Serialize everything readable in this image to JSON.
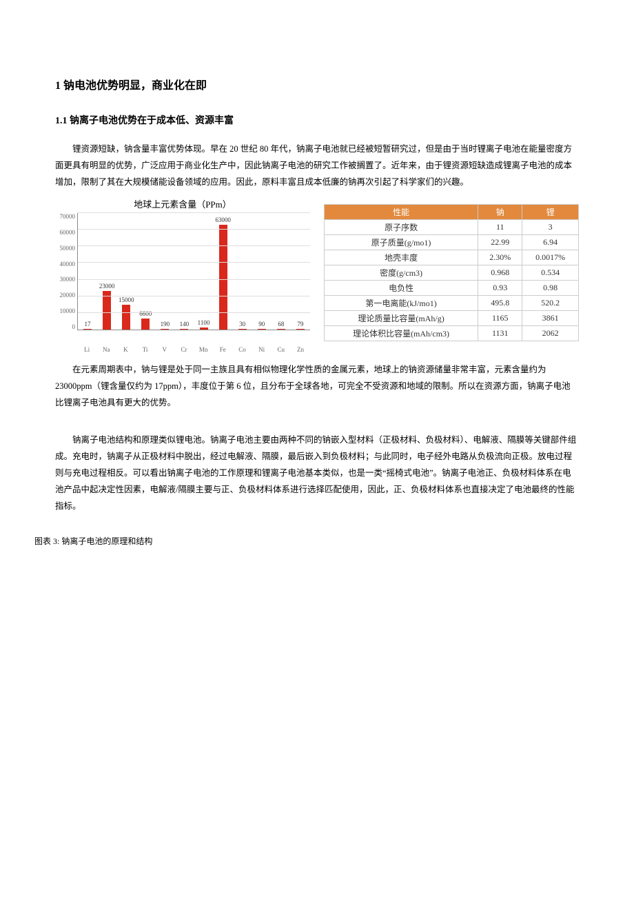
{
  "heading1": "1 钠电池优势明显，商业化在即",
  "heading2": "1.1 钠离子电池优势在于成本低、资源丰富",
  "para1": "锂资源短缺，钠含量丰富优势体现。早在 20 世纪 80 年代，钠离子电池就已经被短暂研究过，但是由于当时锂离子电池在能量密度方面更具有明显的优势，广泛应用于商业化生产中，因此钠离子电池的研究工作被搁置了。近年来，由于锂资源短缺造成锂离子电池的成本增加，限制了其在大规模储能设备领域的应用。因此，原料丰富且成本低廉的钠再次引起了科学家们的兴趣。",
  "para2": "在元素周期表中，钠与锂是处于同一主族且具有相似物理化学性质的金属元素，地球上的钠资源储量非常丰富，元素含量约为 23000ppm（锂含量仅约为 17ppm），丰度位于第 6 位，且分布于全球各地，可完全不受资源和地域的限制。所以在资源方面，钠离子电池比锂离子电池具有更大的优势。",
  "para3": "钠离子电池结构和原理类似锂电池。钠离子电池主要由两种不同的钠嵌入型材料（正极材料、负极材料）、电解液、隔膜等关键部件组成。充电时，钠离子从正极材料中脱出，经过电解液、隔膜，最后嵌入到负极材料；与此同时，电子经外电路从负极流向正极。放电过程则与充电过程相反。可以看出钠离子电池的工作原理和锂离子电池基本类似，也是一类“摇椅式电池”。钠离子电池正、负极材料体系在电池产品中起决定性因素，电解液/隔膜主要与正、负极材料体系进行选择匹配使用，因此，正、负极材料体系也直接决定了电池最终的性能指标。",
  "figure3_caption": "图表 3: 钠离子电池的原理和结构",
  "chart": {
    "title": "地球上元素含量（PPm）",
    "ymax": 70000,
    "ytick_step": 10000,
    "bar_color": "#d9291c",
    "grid_color": "#dddddd",
    "axis_color": "#888888",
    "label_color": "#666666",
    "categories": [
      "Li",
      "Na",
      "K",
      "Ti",
      "V",
      "Cr",
      "Mn",
      "Fe",
      "Co",
      "Ni",
      "Cu",
      "Zn"
    ],
    "values": [
      17,
      23000,
      15000,
      6600,
      190,
      140,
      1100,
      63000,
      30,
      90,
      68,
      79
    ]
  },
  "table": {
    "header_bg": "#e2893d",
    "header_fg": "#ffffff",
    "border_color": "#cccccc",
    "columns": [
      "性能",
      "钠",
      "锂"
    ],
    "rows": [
      [
        "原子序数",
        "11",
        "3"
      ],
      [
        "原子质量(g/mo1)",
        "22.99",
        "6.94"
      ],
      [
        "地壳丰度",
        "2.30%",
        "0.0017%"
      ],
      [
        "密度(g/cm3)",
        "0.968",
        "0.534"
      ],
      [
        "电负性",
        "0.93",
        "0.98"
      ],
      [
        "第一电离能(kJ/mo1)",
        "495.8",
        "520.2"
      ],
      [
        "理论质量比容量(mAh/g)",
        "1165",
        "3861"
      ],
      [
        "理论体积比容量(mAh/cm3)",
        "1131",
        "2062"
      ]
    ]
  }
}
